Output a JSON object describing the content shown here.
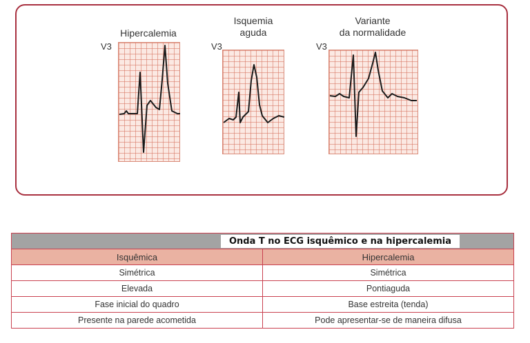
{
  "panels": [
    {
      "title": "Hipercalemia",
      "lead": "V3"
    },
    {
      "title": "Isquemia\naguda",
      "lead": "V3"
    },
    {
      "title": "Variante\nda normalidade",
      "lead": "V3"
    }
  ],
  "table": {
    "title": "Onda T no ECG isquêmico e na hipercalemia",
    "headers": [
      "Isquêmica",
      "Hipercalemia"
    ],
    "rows": [
      [
        "Simétrica",
        "Simétrica"
      ],
      [
        "Elevada",
        "Pontiaguda"
      ],
      [
        "Fase inicial do quadro",
        "Base estreita (tenda)"
      ],
      [
        "Presente na parede acometida",
        "Pode apresentar-se de maneira difusa"
      ]
    ]
  },
  "colors": {
    "frame": "#a8303f",
    "grid": "#d66e5a",
    "grid_bg": "#fbe9e3",
    "header_bg": "#eab2a2",
    "title_bar": "#a3a3a3"
  }
}
